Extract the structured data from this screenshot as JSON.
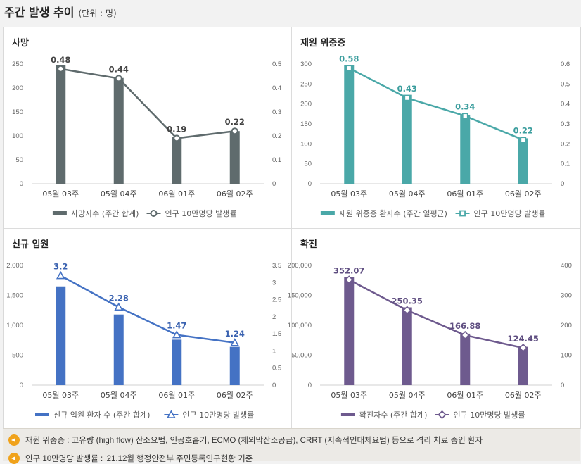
{
  "header": {
    "title": "주간 발생 추이",
    "unit": "(단위 : 명)"
  },
  "notes": [
    "재원 위중증 : 고유량 (high flow) 산소요법, 인공호흡기, ECMO (체외막산소공급), CRRT (지속적인대체요법) 등으로 격리 치료 중인 환자",
    "인구 10만명당 발생률 : '21.12월 행정안전부 주민등록인구현황 기준"
  ],
  "chart_data": [
    {
      "type": "bar",
      "title": "사망",
      "categories": [
        "05월 03주",
        "05월 04주",
        "06월 01주",
        "06월 02주"
      ],
      "ylim": [
        0,
        250
      ],
      "yticks": [
        "0",
        "50",
        "100",
        "150",
        "200",
        "250"
      ],
      "y2lim": [
        0,
        0.5
      ],
      "y2ticks": [
        "0",
        "0.1",
        "0.2",
        "0.3",
        "0.4",
        "0.5"
      ],
      "bar_color": "#5f6b6d",
      "line_color": "#5f6b6d",
      "marker": "circle",
      "series": [
        {
          "name": "사망자수 (주간 합계)",
          "kind": "bar",
          "values": [
            248,
            221,
            98,
            110
          ]
        },
        {
          "name": "인구 10만명당 발생률",
          "kind": "line",
          "axis": "right",
          "values": [
            0.48,
            0.44,
            0.19,
            0.22
          ],
          "labels": [
            "0.48",
            "0.44",
            "0.19",
            "0.22"
          ]
        }
      ],
      "label_color": "#444444"
    },
    {
      "type": "bar",
      "title": "재원 위중증",
      "categories": [
        "05월 03주",
        "05월 04주",
        "06월 01주",
        "06월 02주"
      ],
      "ylim": [
        0,
        300
      ],
      "yticks": [
        "0",
        "50",
        "100",
        "150",
        "200",
        "250",
        "300"
      ],
      "y2lim": [
        0,
        0.6
      ],
      "y2ticks": [
        "0",
        "0.1",
        "0.2",
        "0.3",
        "0.4",
        "0.5",
        "0.6"
      ],
      "bar_color": "#4aa8a8",
      "line_color": "#4aa8a8",
      "marker": "square",
      "series": [
        {
          "name": "재원 위중증 환자수 (주간 일평균)",
          "kind": "bar",
          "values": [
            298,
            223,
            173,
            114
          ]
        },
        {
          "name": "인구 10만명당 발생률",
          "kind": "line",
          "axis": "right",
          "values": [
            0.58,
            0.43,
            0.34,
            0.22
          ],
          "labels": [
            "0.58",
            "0.43",
            "0.34",
            "0.22"
          ]
        }
      ],
      "label_color": "#3a9d9d"
    },
    {
      "type": "bar",
      "title": "신규 입원",
      "categories": [
        "05월 03주",
        "05월 04주",
        "06월 01주",
        "06월 02주"
      ],
      "ylim": [
        0,
        2000
      ],
      "yticks": [
        "0",
        "500",
        "1,000",
        "1,500",
        "2,000"
      ],
      "y2lim": [
        0,
        3.5
      ],
      "y2ticks": [
        "0",
        "0.5",
        "1",
        "1.5",
        "2",
        "2.5",
        "3",
        "3.5"
      ],
      "bar_color": "#4472c4",
      "line_color": "#4472c4",
      "marker": "triangle",
      "series": [
        {
          "name": "신규 입원 환자 수 (주간 합계)",
          "kind": "bar",
          "values": [
            1650,
            1180,
            760,
            640
          ]
        },
        {
          "name": "인구 10만명당 발생률",
          "kind": "line",
          "axis": "right",
          "values": [
            3.2,
            2.28,
            1.47,
            1.24
          ],
          "labels": [
            "3.2",
            "2.28",
            "1.47",
            "1.24"
          ]
        }
      ],
      "label_color": "#3a62b0"
    },
    {
      "type": "bar",
      "title": "확진",
      "categories": [
        "05월 03주",
        "05월 04주",
        "06월 01주",
        "06월 02주"
      ],
      "ylim": [
        0,
        200000
      ],
      "yticks": [
        "0",
        "50,000",
        "100,000",
        "150,000",
        "200,000"
      ],
      "y2lim": [
        0,
        400
      ],
      "y2ticks": [
        "0",
        "100",
        "200",
        "300",
        "400"
      ],
      "bar_color": "#6e5a8e",
      "line_color": "#6e5a8e",
      "marker": "diamond",
      "series": [
        {
          "name": "확진자수 (주간 합계)",
          "kind": "bar",
          "values": [
            181000,
            130000,
            86000,
            64000
          ]
        },
        {
          "name": "인구 10만명당 발생률",
          "kind": "line",
          "axis": "right",
          "values": [
            352.07,
            250.35,
            166.88,
            124.45
          ],
          "labels": [
            "352.07",
            "250.35",
            "166.88",
            "124.45"
          ]
        }
      ],
      "label_color": "#5e4d80"
    }
  ]
}
